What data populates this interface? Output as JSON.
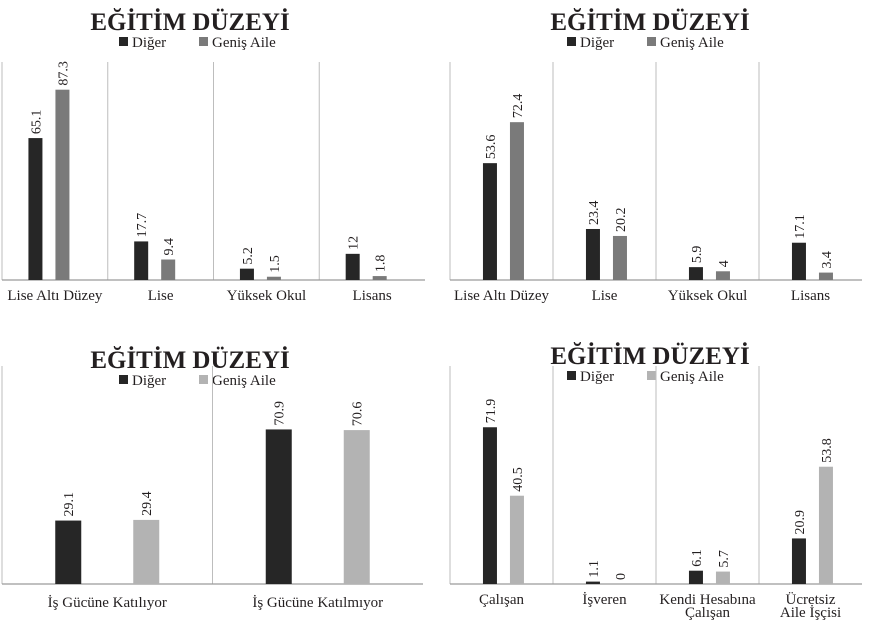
{
  "chart_data": [
    {
      "type": "bar",
      "title": "EĞİTİM DÜZEYİ",
      "categories": [
        [
          "Lise Altı Düzey"
        ],
        [
          "Lise"
        ],
        [
          "Yüksek Okul"
        ],
        [
          "Lisans"
        ]
      ],
      "series": [
        {
          "name": "Diğer",
          "values": [
            65.1,
            17.7,
            5.2,
            12
          ],
          "labels": [
            "65.1",
            "17.7",
            "5.2",
            "12"
          ],
          "color": "#262626"
        },
        {
          "name": "Geniş Aile",
          "values": [
            87.3,
            9.4,
            1.5,
            1.8
          ],
          "labels": [
            "87.3",
            "9.4",
            "1.5",
            "1.8"
          ],
          "color": "#7a7a7a"
        }
      ],
      "ylim": [
        0,
        100
      ],
      "grid": false,
      "legend": "top"
    },
    {
      "type": "bar",
      "title": "EĞİTİM DÜZEYİ",
      "categories": [
        [
          "Lise Altı Düzey"
        ],
        [
          "Lise"
        ],
        [
          "Yüksek Okul"
        ],
        [
          "Lisans"
        ]
      ],
      "series": [
        {
          "name": "Diğer",
          "values": [
            53.6,
            23.4,
            5.9,
            17.1
          ],
          "labels": [
            "53.6",
            "23.4",
            "5.9",
            "17.1"
          ],
          "color": "#262626"
        },
        {
          "name": "Geniş Aile",
          "values": [
            72.4,
            20.2,
            4,
            3.4
          ],
          "labels": [
            "72.4",
            "20.2",
            "4",
            "3.4"
          ],
          "color": "#7a7a7a"
        }
      ],
      "ylim": [
        0,
        100
      ],
      "grid": false,
      "legend": "top"
    },
    {
      "type": "bar",
      "title": "EĞİTİM DÜZEYİ",
      "categories": [
        [
          "İş Gücüne Katılıyor"
        ],
        [
          "İş Gücüne Katılmıyor"
        ]
      ],
      "series": [
        {
          "name": "Diğer",
          "values": [
            29.1,
            70.9
          ],
          "labels": [
            "29.1",
            "70.9"
          ],
          "color": "#262626"
        },
        {
          "name": "Geniş Aile",
          "values": [
            29.4,
            70.6
          ],
          "labels": [
            "29.4",
            "70.6"
          ],
          "color": "#b3b3b3"
        }
      ],
      "ylim": [
        0,
        100
      ],
      "grid": false,
      "legend": "top"
    },
    {
      "type": "bar",
      "title": "EĞİTİM DÜZEYİ",
      "categories": [
        [
          "Çalışan"
        ],
        [
          "İşveren"
        ],
        [
          "Kendi Hesabına",
          "Çalışan"
        ],
        [
          "Ücretsiz",
          "Aile İşçisi"
        ]
      ],
      "series": [
        {
          "name": "Diğer",
          "values": [
            71.9,
            1.1,
            6.1,
            20.9
          ],
          "labels": [
            "71.9",
            "1.1",
            "6.1",
            "20.9"
          ],
          "color": "#262626"
        },
        {
          "name": "Geniş Aile",
          "values": [
            40.5,
            0,
            5.7,
            53.8
          ],
          "labels": [
            "40.5",
            "0",
            "5.7",
            "53.8"
          ],
          "color": "#b3b3b3"
        }
      ],
      "ylim": [
        0,
        100
      ],
      "grid": false,
      "legend": "top"
    }
  ]
}
